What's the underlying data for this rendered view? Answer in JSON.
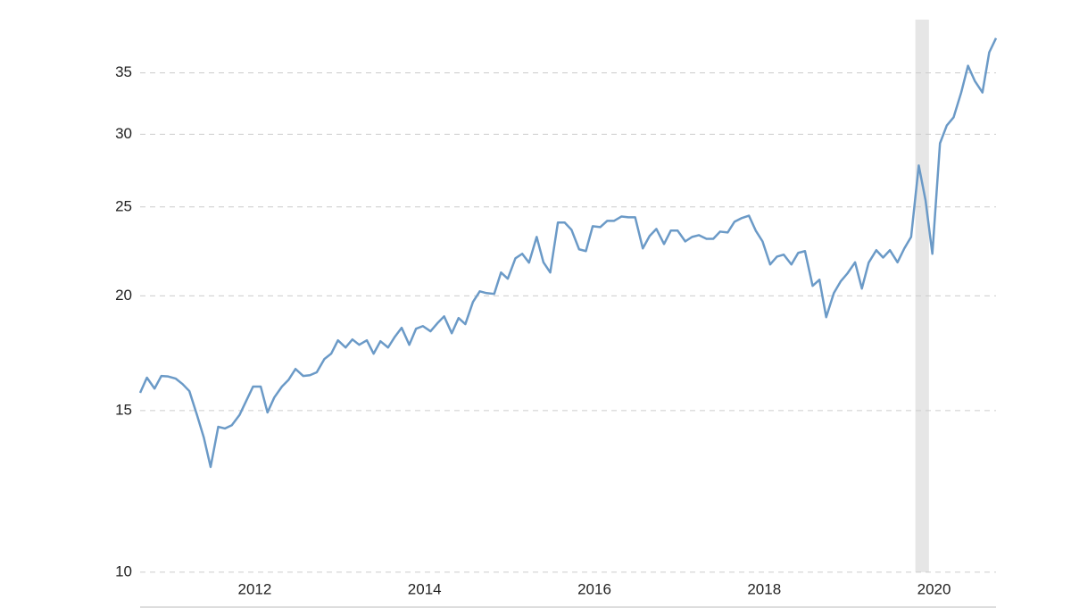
{
  "chart_data": {
    "type": "line",
    "log_y": true,
    "grid": true,
    "x": [
      2010.65,
      2010.73,
      2010.82,
      2010.9,
      2010.98,
      2011.07,
      2011.15,
      2011.23,
      2011.32,
      2011.4,
      2011.48,
      2011.57,
      2011.65,
      2011.73,
      2011.82,
      2011.9,
      2011.98,
      2012.07,
      2012.15,
      2012.23,
      2012.32,
      2012.4,
      2012.48,
      2012.57,
      2012.65,
      2012.73,
      2012.82,
      2012.9,
      2012.98,
      2013.07,
      2013.15,
      2013.23,
      2013.32,
      2013.4,
      2013.48,
      2013.57,
      2013.65,
      2013.73,
      2013.82,
      2013.9,
      2013.98,
      2014.07,
      2014.15,
      2014.23,
      2014.32,
      2014.4,
      2014.48,
      2014.57,
      2014.65,
      2014.73,
      2014.82,
      2014.9,
      2014.98,
      2015.07,
      2015.15,
      2015.23,
      2015.32,
      2015.4,
      2015.48,
      2015.57,
      2015.65,
      2015.73,
      2015.82,
      2015.9,
      2015.98,
      2016.07,
      2016.15,
      2016.23,
      2016.32,
      2016.4,
      2016.48,
      2016.57,
      2016.65,
      2016.73,
      2016.82,
      2016.9,
      2016.98,
      2017.07,
      2017.15,
      2017.23,
      2017.32,
      2017.4,
      2017.48,
      2017.57,
      2017.65,
      2017.73,
      2017.82,
      2017.9,
      2017.98,
      2018.07,
      2018.15,
      2018.23,
      2018.32,
      2018.4,
      2018.48,
      2018.57,
      2018.65,
      2018.73,
      2018.82,
      2018.9,
      2018.98,
      2019.07,
      2019.15,
      2019.23,
      2019.32,
      2019.4,
      2019.48,
      2019.57,
      2019.65,
      2019.73,
      2019.82,
      2019.9,
      2019.98,
      2020.07,
      2020.15,
      2020.23,
      2020.32,
      2020.4,
      2020.48,
      2020.57,
      2020.65,
      2020.73
    ],
    "series": [
      {
        "color": "#6b9ac7",
        "values": [
          15.68,
          16.29,
          15.85,
          16.36,
          16.34,
          16.25,
          16.03,
          15.75,
          14.83,
          14.02,
          13.02,
          14.4,
          14.34,
          14.46,
          14.83,
          15.37,
          15.93,
          15.93,
          14.93,
          15.5,
          15.93,
          16.21,
          16.65,
          16.36,
          16.39,
          16.51,
          17.07,
          17.3,
          17.89,
          17.57,
          17.93,
          17.69,
          17.89,
          17.3,
          17.85,
          17.57,
          18.05,
          18.46,
          17.69,
          18.42,
          18.54,
          18.3,
          18.67,
          19.0,
          18.21,
          18.92,
          18.63,
          19.7,
          20.23,
          20.14,
          20.1,
          21.21,
          20.88,
          21.98,
          22.23,
          21.74,
          23.19,
          21.76,
          21.21,
          24.04,
          24.04,
          23.61,
          22.48,
          22.38,
          23.82,
          23.77,
          24.14,
          24.14,
          24.41,
          24.36,
          24.36,
          22.53,
          23.24,
          23.66,
          22.78,
          23.56,
          23.56,
          22.93,
          23.19,
          23.29,
          23.08,
          23.08,
          23.5,
          23.45,
          24.09,
          24.3,
          24.46,
          23.56,
          22.93,
          21.64,
          22.07,
          22.18,
          21.64,
          22.28,
          22.38,
          20.51,
          20.83,
          18.96,
          20.14,
          20.74,
          21.16,
          21.76,
          20.37,
          21.74,
          22.43,
          22.02,
          22.43,
          21.76,
          22.53,
          23.19,
          27.74,
          25.42,
          22.23,
          29.33,
          30.67,
          31.3,
          33.32,
          35.63,
          34.3,
          33.32,
          36.85,
          38.19
        ]
      }
    ],
    "shaded_xrange": [
      2019.78,
      2019.94
    ],
    "xlim": [
      2010.65,
      2020.73
    ],
    "xticks": [
      2012,
      2014,
      2016,
      2018,
      2020
    ],
    "ylim": [
      9.16,
      40
    ],
    "yticks": [
      10,
      15,
      20,
      25,
      30,
      35
    ]
  }
}
